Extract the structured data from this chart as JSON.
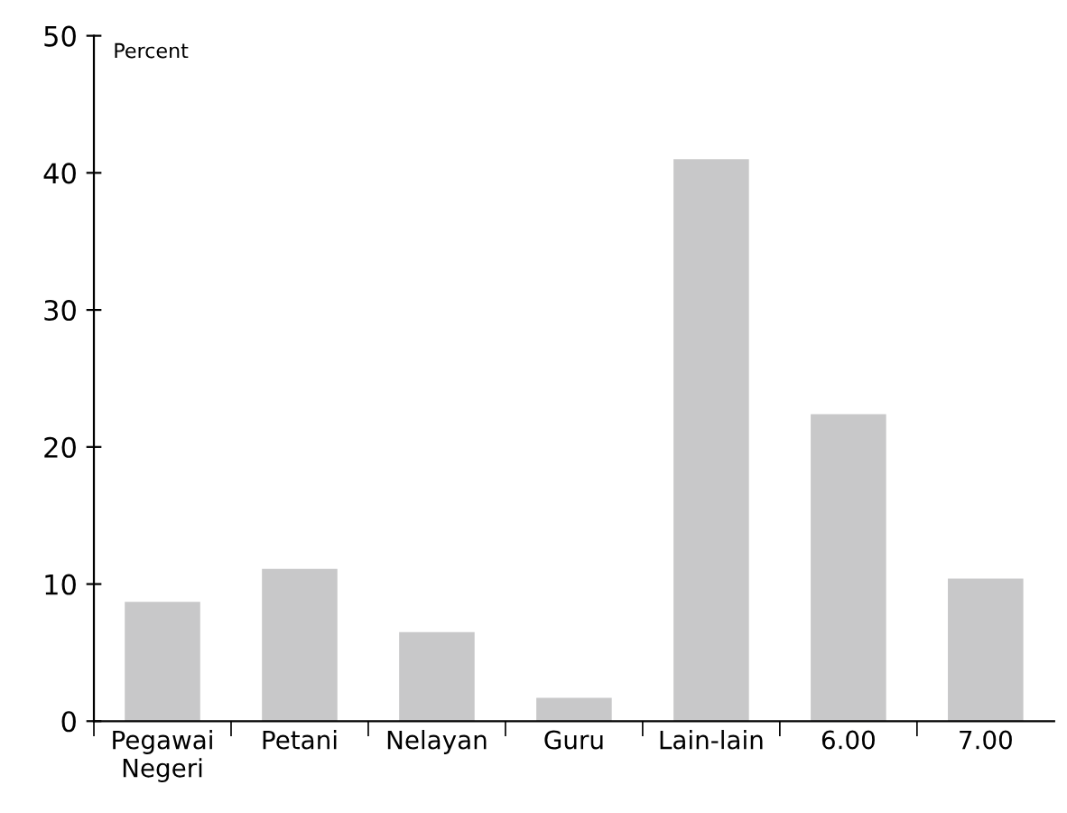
{
  "chart_data": {
    "type": "bar",
    "ylabel": "Percent",
    "categories": [
      "Pegawai\nNegeri",
      "Petani",
      "Nelayan",
      "Guru",
      "Lain-lain",
      "6.00",
      "7.00"
    ],
    "values": [
      8.7,
      11.1,
      6.5,
      1.7,
      41.0,
      22.4,
      10.4
    ],
    "color": "#c8c8c9",
    "ylim": [
      0,
      50
    ],
    "yticks": [
      0,
      10,
      20,
      30,
      40,
      50
    ],
    "grid": false
  }
}
